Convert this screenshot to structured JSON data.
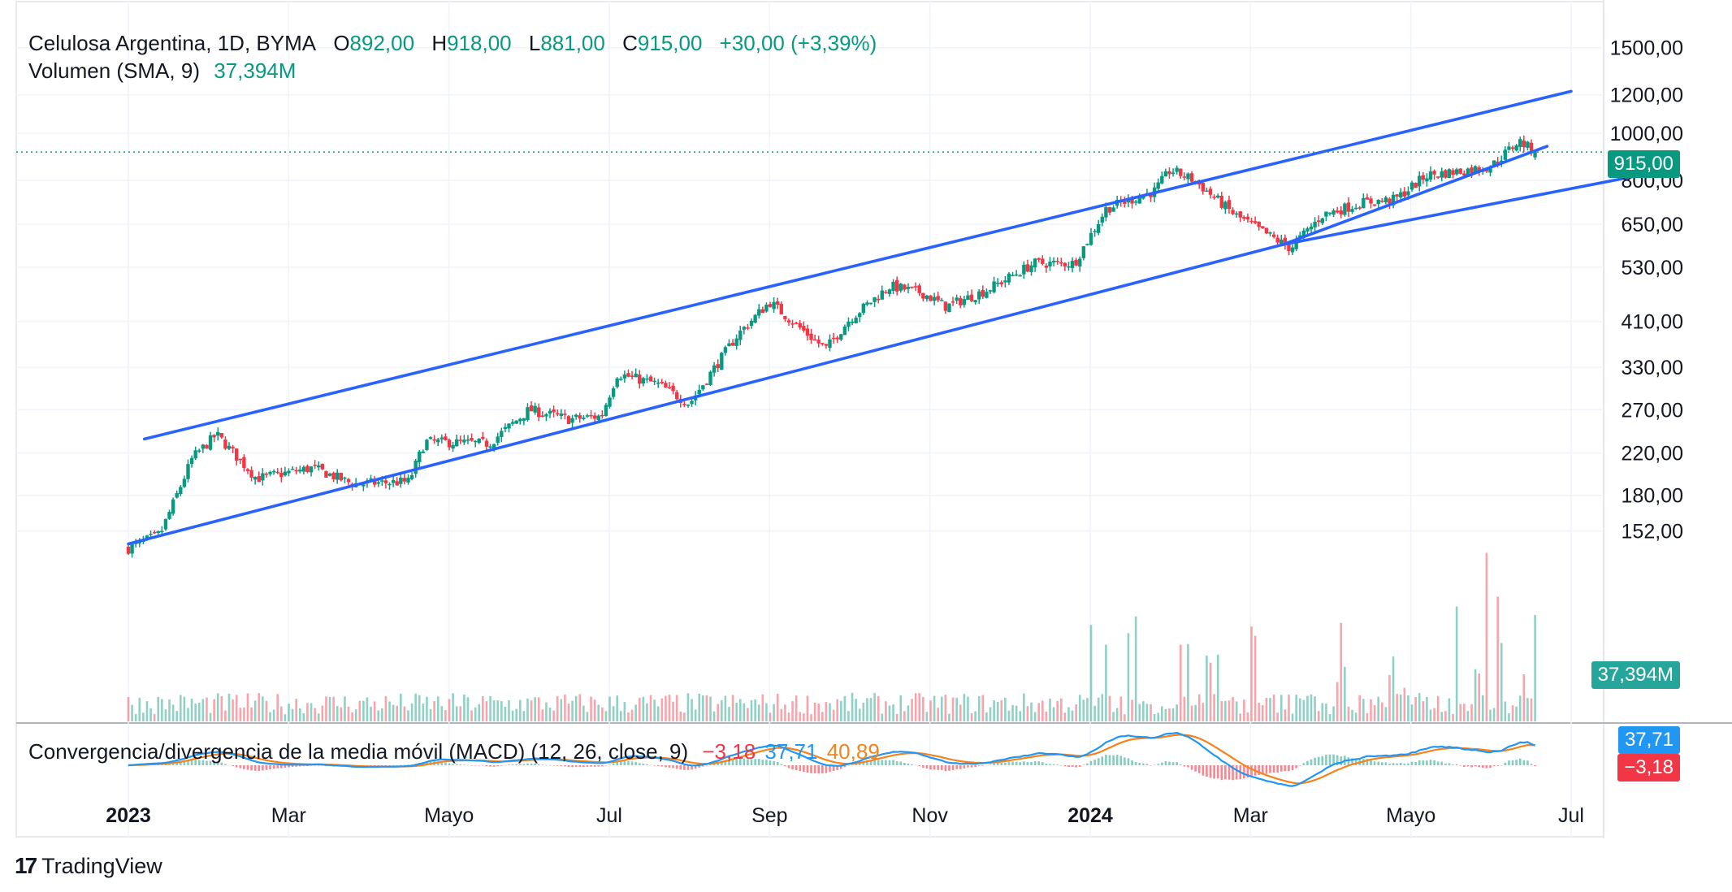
{
  "header": {
    "symbol": "Celulosa Argentina, 1D, BYMA",
    "o_label": "O",
    "o_value": "892,00",
    "h_label": "H",
    "h_value": "918,00",
    "l_label": "L",
    "l_value": "881,00",
    "c_label": "C",
    "c_value": "915,00",
    "change": "+30,00 (+3,39%)",
    "volume_label": "Volumen (SMA, 9)",
    "volume_value": "37,394M",
    "macd_label": "Convergencia/divergencia de la media móvil (MACD) (12, 26, close, 9)",
    "macd_hist": "−3,18",
    "macd_line": "37,71",
    "macd_signal": "40,89"
  },
  "price_tags": {
    "last_price": "915,00",
    "volume": "37,394M",
    "macd": "37,71",
    "hist": "−3,18"
  },
  "brand": "TradingView",
  "colors": {
    "up": "#089981",
    "down": "#f23645",
    "trend": "#2962ff",
    "macd": "#2196f3",
    "signal": "#f7821b"
  },
  "chart_data": {
    "type": "candlestick",
    "symbol": "Celulosa Argentina",
    "interval": "1D",
    "exchange": "BYMA",
    "y_scale": "log",
    "y_ticks": [
      "1500,00",
      "1200,00",
      "1000,00",
      "800,00",
      "650,00",
      "530,00",
      "410,00",
      "330,00",
      "270,00",
      "220,00",
      "180,00",
      "152,00"
    ],
    "y_tick_values": [
      1500,
      1200,
      1000,
      800,
      650,
      530,
      410,
      330,
      270,
      220,
      180,
      152
    ],
    "x_ticks": [
      {
        "label": "2023",
        "month": 0,
        "bold": true
      },
      {
        "label": "Mar",
        "month": 2,
        "bold": false
      },
      {
        "label": "Mayo",
        "month": 4,
        "bold": false
      },
      {
        "label": "Jul",
        "month": 6,
        "bold": false
      },
      {
        "label": "Sep",
        "month": 8,
        "bold": false
      },
      {
        "label": "Nov",
        "month": 10,
        "bold": false
      },
      {
        "label": "2024",
        "month": 12,
        "bold": true
      },
      {
        "label": "Mar",
        "month": 14,
        "bold": false
      },
      {
        "label": "Mayo",
        "month": 16,
        "bold": false
      },
      {
        "label": "Jul",
        "month": 18,
        "bold": false
      }
    ],
    "key_closes": [
      {
        "month": 0.0,
        "price": 140
      },
      {
        "month": 0.4,
        "price": 150
      },
      {
        "month": 0.8,
        "price": 215
      },
      {
        "month": 1.1,
        "price": 240
      },
      {
        "month": 1.6,
        "price": 195
      },
      {
        "month": 2.3,
        "price": 205
      },
      {
        "month": 2.8,
        "price": 190
      },
      {
        "month": 3.5,
        "price": 192
      },
      {
        "month": 3.7,
        "price": 232
      },
      {
        "month": 4.5,
        "price": 230
      },
      {
        "month": 5.0,
        "price": 270
      },
      {
        "month": 5.5,
        "price": 258
      },
      {
        "month": 5.9,
        "price": 262
      },
      {
        "month": 6.1,
        "price": 320
      },
      {
        "month": 6.6,
        "price": 305
      },
      {
        "month": 7.0,
        "price": 278
      },
      {
        "month": 7.6,
        "price": 385
      },
      {
        "month": 8.0,
        "price": 450
      },
      {
        "month": 8.4,
        "price": 395
      },
      {
        "month": 8.7,
        "price": 360
      },
      {
        "month": 9.0,
        "price": 415
      },
      {
        "month": 9.5,
        "price": 485
      },
      {
        "month": 9.9,
        "price": 470
      },
      {
        "month": 10.2,
        "price": 440
      },
      {
        "month": 10.7,
        "price": 475
      },
      {
        "month": 11.3,
        "price": 540
      },
      {
        "month": 11.8,
        "price": 540
      },
      {
        "month": 12.2,
        "price": 700
      },
      {
        "month": 12.8,
        "price": 760
      },
      {
        "month": 13.0,
        "price": 840
      },
      {
        "month": 13.3,
        "price": 800
      },
      {
        "month": 13.8,
        "price": 680
      },
      {
        "month": 14.2,
        "price": 620
      },
      {
        "month": 14.5,
        "price": 580
      },
      {
        "month": 14.9,
        "price": 680
      },
      {
        "month": 15.4,
        "price": 720
      },
      {
        "month": 15.8,
        "price": 730
      },
      {
        "month": 16.2,
        "price": 820
      },
      {
        "month": 16.6,
        "price": 835
      },
      {
        "month": 17.0,
        "price": 855
      },
      {
        "month": 17.35,
        "price": 965
      },
      {
        "month": 17.55,
        "price": 915
      }
    ],
    "trendlines": [
      {
        "name": "channel-upper",
        "from": {
          "month": 0.2,
          "price": 235
        },
        "to": {
          "month": 18.0,
          "price": 1220
        }
      },
      {
        "name": "channel-lower",
        "from": {
          "month": 0.0,
          "price": 143
        },
        "to": {
          "month": 14.4,
          "price": 590
        }
      },
      {
        "name": "support-long",
        "from": {
          "month": 14.4,
          "price": 590
        },
        "to": {
          "month": 18.9,
          "price": 822
        }
      },
      {
        "name": "support-short",
        "from": {
          "month": 14.4,
          "price": 590
        },
        "to": {
          "month": 17.7,
          "price": 940
        }
      }
    ],
    "volume_sma": "37,394M",
    "macd": {
      "fast": 12,
      "slow": 26,
      "source": "close",
      "signal_len": 9,
      "histogram": -3.18,
      "macd": 37.71,
      "signal": 40.89
    }
  }
}
